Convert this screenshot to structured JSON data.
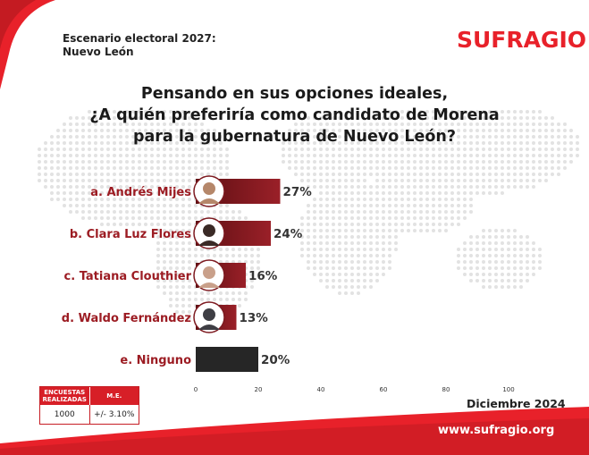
{
  "header": {
    "line1": "Escenario electoral 2027:",
    "line2": "Nuevo León"
  },
  "brand": {
    "logo": "SUFRAGIO",
    "url": "www.sufragio.org"
  },
  "question": {
    "line1": "Pensando en sus opciones ideales,",
    "line2": "¿A quién preferiría como candidato de Morena",
    "line3": "para la gubernatura de Nuevo León?"
  },
  "chart_data": {
    "type": "bar",
    "orientation": "horizontal",
    "categories": [
      "a. Andrés Mijes",
      "b. Clara Luz Flores",
      "c. Tatiana Clouthier",
      "d. Waldo Fernández",
      "e. Ninguno"
    ],
    "values": [
      27,
      24,
      16,
      13,
      20
    ],
    "value_labels": [
      "27%",
      "24%",
      "16%",
      "13%",
      "20%"
    ],
    "xlim": [
      0,
      100
    ],
    "xticks": [
      "0",
      "20",
      "40",
      "60",
      "80",
      "100"
    ],
    "grid": false,
    "colors": {
      "candidate_bar_start": "#5e0f13",
      "candidate_bar_end": "#9a2028",
      "ninguno_bar": "#262626",
      "label": "#9c1c23"
    }
  },
  "sample": {
    "col1_header": "ENCUESTAS REALIZADAS",
    "col2_header": "M.E.",
    "col1_value": "1000",
    "col2_value": "+/- 3.10%"
  },
  "date": "Diciembre 2024",
  "colors": {
    "accent": "#e8212a",
    "dark_red": "#9c1c23"
  }
}
